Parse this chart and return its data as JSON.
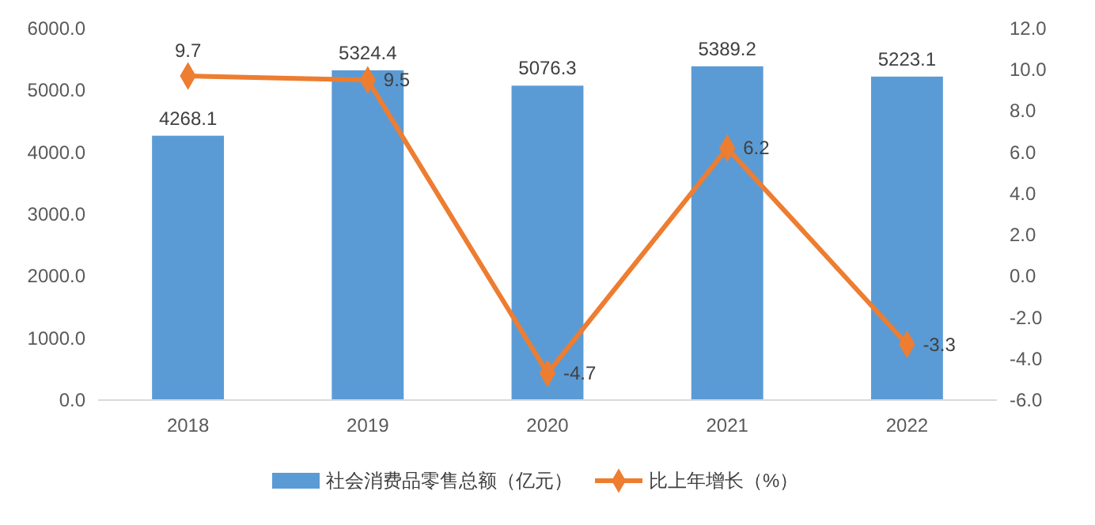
{
  "chart_data": {
    "type": "bar",
    "categories": [
      "2018",
      "2019",
      "2020",
      "2021",
      "2022"
    ],
    "series": [
      {
        "name": "社会消费品零售总额（亿元）",
        "color": "#5b9bd5",
        "values": [
          4268.1,
          5324.4,
          5076.3,
          5389.2,
          5223.1
        ]
      },
      {
        "name": "比上年增长（%）",
        "type": "line",
        "axis": "y2",
        "color": "#ed7d31",
        "values": [
          9.7,
          9.5,
          -4.7,
          6.2,
          -3.3
        ],
        "marker": "diamond"
      }
    ],
    "ylim": [
      0,
      6000
    ],
    "yticks": [
      {
        "value": 0,
        "label": "0.0"
      },
      {
        "value": 1000,
        "label": "1000.0"
      },
      {
        "value": 2000,
        "label": "2000.0"
      },
      {
        "value": 3000,
        "label": "3000.0"
      },
      {
        "value": 4000,
        "label": "4000.0"
      },
      {
        "value": 5000,
        "label": "5000.0"
      },
      {
        "value": 6000,
        "label": "6000.0"
      }
    ],
    "y2lim": [
      -6,
      12
    ],
    "y2ticks": [
      {
        "value": -6,
        "label": "-6.0"
      },
      {
        "value": -4,
        "label": "-4.0"
      },
      {
        "value": -2,
        "label": "-2.0"
      },
      {
        "value": 0,
        "label": "0.0"
      },
      {
        "value": 2,
        "label": "2.0"
      },
      {
        "value": 4,
        "label": "4.0"
      },
      {
        "value": 6,
        "label": "6.0"
      },
      {
        "value": 8,
        "label": "8.0"
      },
      {
        "value": 10,
        "label": "10.0"
      },
      {
        "value": 12,
        "label": "12.0"
      }
    ],
    "data_labels": true,
    "grid": false,
    "legend": "bottom"
  }
}
